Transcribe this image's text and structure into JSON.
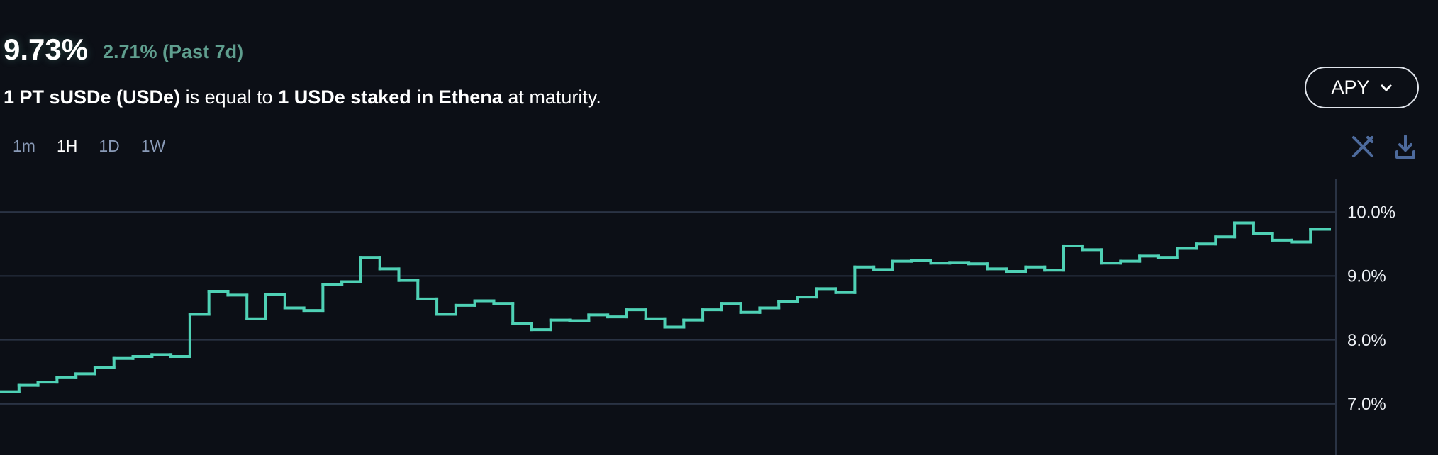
{
  "header": {
    "apy": "9.73%",
    "change": "2.71% (Past 7d)"
  },
  "description": {
    "parts": [
      {
        "text": "1 PT sUSDe (USDe)",
        "bold": true
      },
      {
        "text": "is equal to",
        "bold": false
      },
      {
        "text": "1 USDe staked in Ethena",
        "bold": true
      },
      {
        "text": "at maturity.",
        "bold": false
      }
    ]
  },
  "timeframes": {
    "options": [
      "1m",
      "1H",
      "1D",
      "1W"
    ],
    "selected": "1H"
  },
  "selector": {
    "label": "APY"
  },
  "chart_data": {
    "type": "step",
    "values": [
      7.19,
      7.29,
      7.34,
      7.41,
      7.47,
      7.57,
      7.71,
      7.74,
      7.77,
      7.74,
      8.4,
      8.76,
      8.7,
      8.33,
      8.71,
      8.5,
      8.46,
      8.87,
      8.91,
      9.29,
      9.11,
      8.93,
      8.64,
      8.4,
      8.54,
      8.61,
      8.57,
      8.26,
      8.16,
      8.31,
      8.3,
      8.39,
      8.36,
      8.47,
      8.33,
      8.2,
      8.31,
      8.47,
      8.57,
      8.43,
      8.5,
      8.6,
      8.67,
      8.8,
      8.74,
      9.14,
      9.1,
      9.23,
      9.24,
      9.2,
      9.21,
      9.19,
      9.11,
      9.07,
      9.14,
      9.09,
      9.47,
      9.41,
      9.2,
      9.23,
      9.31,
      9.29,
      9.43,
      9.5,
      9.61,
      9.83,
      9.66,
      9.56,
      9.53,
      9.73
    ],
    "color": "#4fd1b5",
    "ylim": [
      6.2,
      10.5
    ],
    "yticks": [
      {
        "value": 7,
        "label": "7.0%"
      },
      {
        "value": 8,
        "label": "8.0%"
      },
      {
        "value": 9,
        "label": "9.0%"
      },
      {
        "value": 10,
        "label": "10.0%"
      }
    ],
    "grid": true
  }
}
